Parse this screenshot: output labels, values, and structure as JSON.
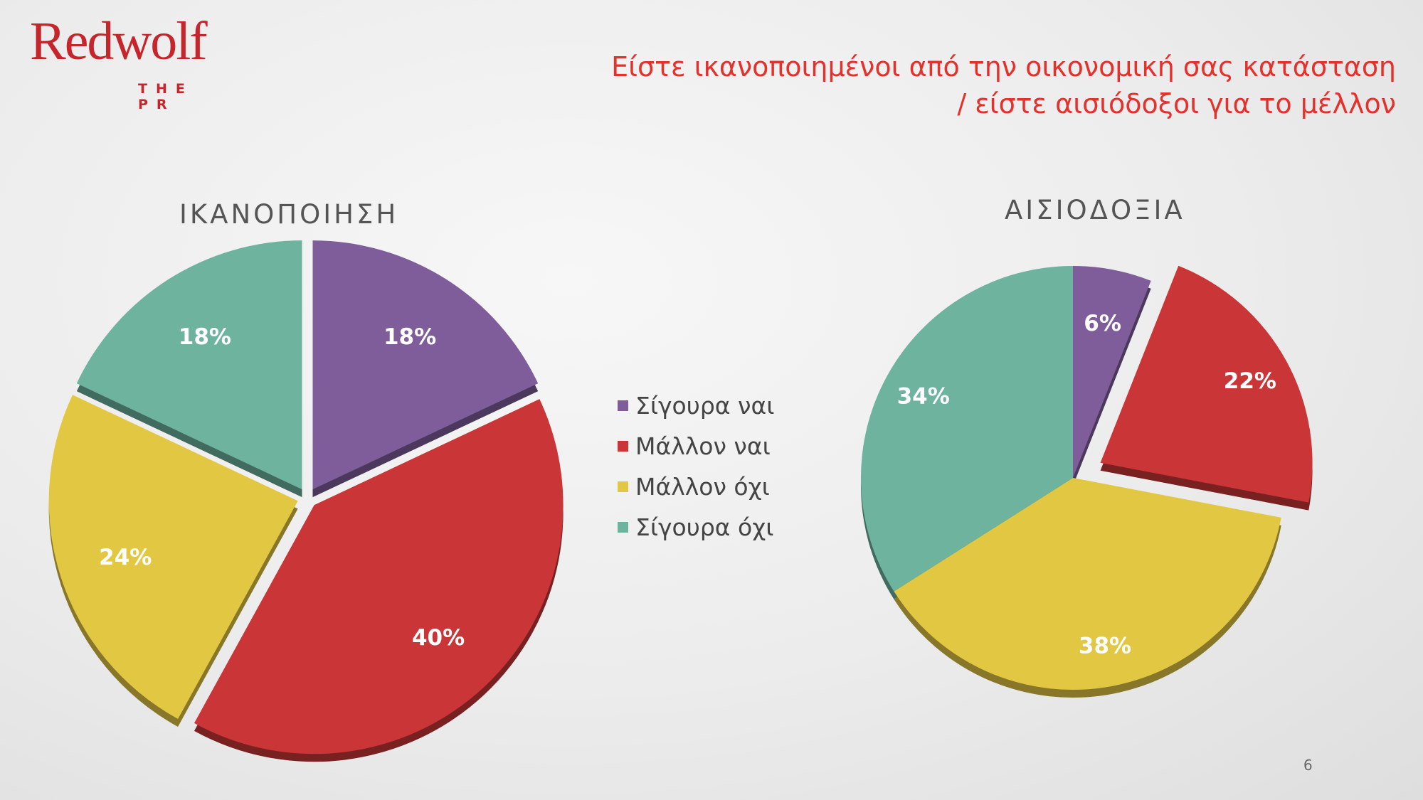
{
  "logo": {
    "wordmark": "Redwolf",
    "subline": "THE PR"
  },
  "title": {
    "line1": "Είστε ικανοποιημένοι από την οικονομική σας κατάσταση",
    "line2": "/ είστε αισιόδοξοι για το μέλλον"
  },
  "legend": [
    {
      "label": "Σίγουρα ναι",
      "color": "#7e5d9a"
    },
    {
      "label": "Μάλλον ναι",
      "color": "#ca3537"
    },
    {
      "label": "Μάλλον όχι",
      "color": "#e2c743"
    },
    {
      "label": "Σίγουρα όχι",
      "color": "#6db39d"
    }
  ],
  "chart_data": [
    {
      "type": "pie",
      "title": "ΙΚΑΝΟΠΟΙΗΣΗ",
      "categories": [
        "Σίγουρα ναι",
        "Μάλλον ναι",
        "Μάλλον όχι",
        "Σίγουρα όχι"
      ],
      "values": [
        18,
        40,
        24,
        18
      ],
      "labels": [
        "18%",
        "40%",
        "24%",
        "18%"
      ],
      "colors": [
        "#7e5d9a",
        "#ca3537",
        "#e2c743",
        "#6db39d"
      ],
      "exploded": true
    },
    {
      "type": "pie",
      "title": "ΑΙΣΙΟΔΟΞΙΑ",
      "categories": [
        "Σίγουρα ναι",
        "Μάλλον ναι",
        "Μάλλον όχι",
        "Σίγουρα όχι"
      ],
      "values": [
        6,
        22,
        38,
        34
      ],
      "labels": [
        "6%",
        "22%",
        "38%",
        "34%"
      ],
      "colors": [
        "#7e5d9a",
        "#ca3537",
        "#e2c743",
        "#6db39d"
      ],
      "exploded_slices": [
        "Μάλλον ναι"
      ]
    }
  ],
  "page_number": "6"
}
